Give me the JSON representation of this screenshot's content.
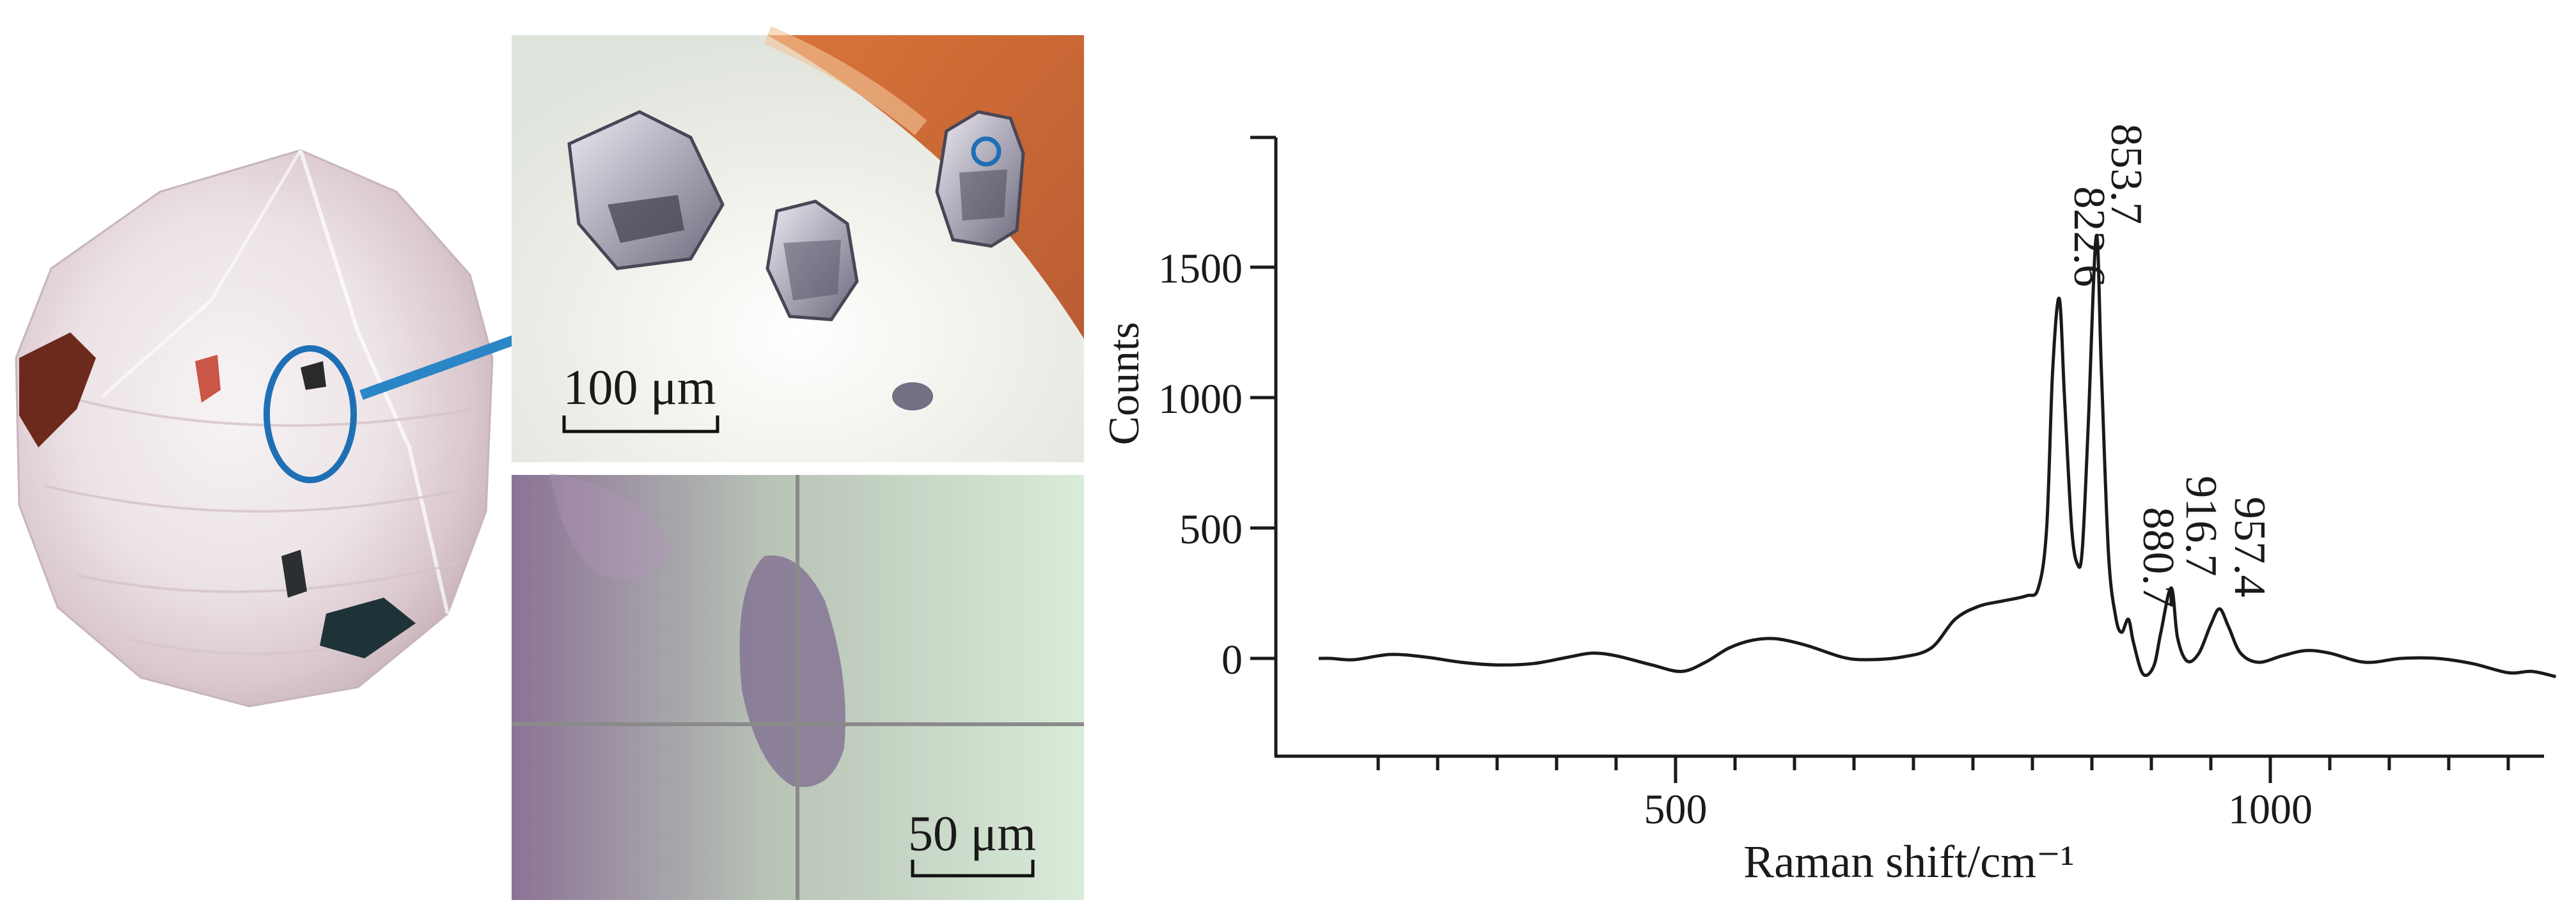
{
  "figure": {
    "scale_bar_top": "100 μm",
    "scale_bar_bottom": "50 μm",
    "colors": {
      "highlight_ring": "#1f6fb5",
      "arrow": "#2a86c6",
      "spectrum_line": "#1a1a1a"
    }
  },
  "chart_data": {
    "type": "line",
    "title": "",
    "xlabel": "Raman shift/cm⁻¹",
    "ylabel": "Counts",
    "xlim": [
      200,
      1240
    ],
    "ylim": [
      -150,
      2000
    ],
    "x_ticks": [
      500,
      1000
    ],
    "y_ticks": [
      0,
      500,
      1000,
      1500
    ],
    "grid": false,
    "series": [
      {
        "values": [
          [
            200,
            0
          ],
          [
            210,
            0
          ],
          [
            230,
            -5
          ],
          [
            260,
            15
          ],
          [
            290,
            5
          ],
          [
            320,
            -15
          ],
          [
            350,
            -25
          ],
          [
            380,
            -20
          ],
          [
            410,
            5
          ],
          [
            430,
            20
          ],
          [
            450,
            10
          ],
          [
            480,
            -25
          ],
          [
            505,
            -50
          ],
          [
            525,
            -15
          ],
          [
            545,
            40
          ],
          [
            565,
            70
          ],
          [
            585,
            75
          ],
          [
            610,
            50
          ],
          [
            640,
            5
          ],
          [
            660,
            -5
          ],
          [
            690,
            5
          ],
          [
            715,
            40
          ],
          [
            735,
            150
          ],
          [
            755,
            200
          ],
          [
            775,
            220
          ],
          [
            795,
            240
          ],
          [
            805,
            270
          ],
          [
            812,
            500
          ],
          [
            817,
            1100
          ],
          [
            822.6,
            1380
          ],
          [
            827,
            1000
          ],
          [
            833,
            500
          ],
          [
            838,
            360
          ],
          [
            842,
            420
          ],
          [
            847,
            900
          ],
          [
            853.7,
            1620
          ],
          [
            858,
            1100
          ],
          [
            864,
            400
          ],
          [
            870,
            160
          ],
          [
            875,
            100
          ],
          [
            880.7,
            150
          ],
          [
            885,
            60
          ],
          [
            893,
            -60
          ],
          [
            902,
            -30
          ],
          [
            908,
            100
          ],
          [
            916.7,
            270
          ],
          [
            922,
            80
          ],
          [
            930,
            -10
          ],
          [
            940,
            20
          ],
          [
            950,
            130
          ],
          [
            957.4,
            190
          ],
          [
            965,
            120
          ],
          [
            975,
            20
          ],
          [
            990,
            -15
          ],
          [
            1010,
            10
          ],
          [
            1030,
            30
          ],
          [
            1050,
            20
          ],
          [
            1080,
            -15
          ],
          [
            1110,
            0
          ],
          [
            1140,
            0
          ],
          [
            1170,
            -20
          ],
          [
            1200,
            -55
          ],
          [
            1220,
            -50
          ],
          [
            1240,
            -70
          ]
        ]
      }
    ],
    "annotations": [
      {
        "x": 822.6,
        "y": 1380,
        "text": "822.6"
      },
      {
        "x": 853.7,
        "y": 1620,
        "text": "853.7"
      },
      {
        "x": 880.7,
        "y": 150,
        "text": "880.7"
      },
      {
        "x": 916.7,
        "y": 270,
        "text": "916.7"
      },
      {
        "x": 957.4,
        "y": 190,
        "text": "957.4"
      }
    ]
  }
}
